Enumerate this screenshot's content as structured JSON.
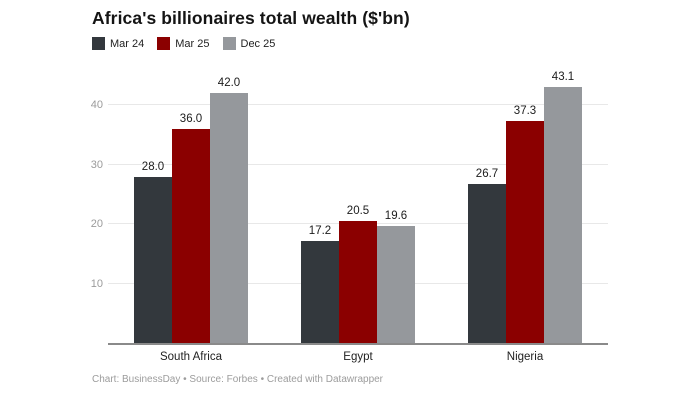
{
  "title": "Africa's billionaires total wealth ($'bn)",
  "footer": "Chart: BusinessDay • Source: Forbes • Created with Datawrapper",
  "colors": {
    "series_dark": "#33383d",
    "series_red": "#8b0000",
    "series_gray": "#95989c",
    "gridline": "#e8e8e8",
    "axis_line": "#8a8a8a",
    "tick_text": "#9b9b9b"
  },
  "chart_data": {
    "type": "bar",
    "title": "Africa's billionaires total wealth ($'bn)",
    "categories": [
      "South Africa",
      "Egypt",
      "Nigeria"
    ],
    "series": [
      {
        "name": "Mar 24",
        "color": "#33383d",
        "values": [
          28.0,
          17.2,
          26.7
        ]
      },
      {
        "name": "Mar 25",
        "color": "#8b0000",
        "values": [
          36.0,
          20.5,
          37.3
        ]
      },
      {
        "name": "Dec 25",
        "color": "#95989c",
        "values": [
          42.0,
          19.6,
          43.1
        ]
      }
    ],
    "value_labels": [
      [
        "28.0",
        "17.2",
        "26.7"
      ],
      [
        "36.0",
        "20.5",
        "37.3"
      ],
      [
        "42.0",
        "19.6",
        "43.1"
      ]
    ],
    "xlabel": "",
    "ylabel": "",
    "yticks": [
      10,
      20,
      30,
      40
    ],
    "ylim": [
      0,
      43.4
    ],
    "grid": true,
    "legend_position": "top"
  }
}
